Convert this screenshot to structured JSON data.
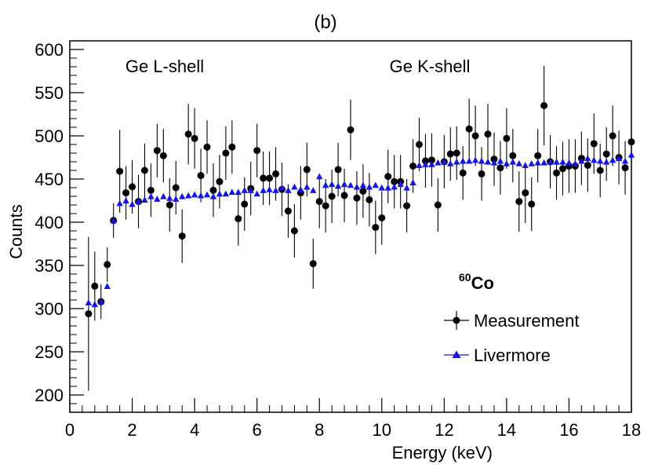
{
  "chart_data": {
    "type": "scatter",
    "panel_label": "(b)",
    "title": "",
    "xlabel": "Energy (keV)",
    "ylabel": "Counts",
    "xlim": [
      0,
      18
    ],
    "ylim": [
      180,
      610
    ],
    "x_ticks": [
      0,
      2,
      4,
      6,
      8,
      10,
      12,
      14,
      16,
      18
    ],
    "x_tick_labels": [
      "0",
      "2",
      "4",
      "6",
      "8",
      "10",
      "12",
      "14",
      "16",
      "18"
    ],
    "y_ticks": [
      200,
      250,
      300,
      350,
      400,
      450,
      500,
      550,
      600
    ],
    "y_tick_labels": [
      "200",
      "250",
      "300",
      "350",
      "400",
      "450",
      "500",
      "550",
      "600"
    ],
    "grid": false,
    "annotations": [
      {
        "text": "Ge L-shell",
        "x": 3.0,
        "y": 592
      },
      {
        "text": "Ge K-shell",
        "x": 11.6,
        "y": 592
      }
    ],
    "legend": {
      "title_superscript": "60",
      "title": "Co",
      "placement": "right",
      "entries": [
        "Measurement",
        "Livermore"
      ]
    },
    "series": [
      {
        "name": "Measurement",
        "marker": "circle",
        "color": "#000000",
        "x": [
          0.6,
          0.8,
          1.0,
          1.2,
          1.4,
          1.6,
          1.8,
          2.0,
          2.2,
          2.4,
          2.6,
          2.8,
          3.0,
          3.2,
          3.4,
          3.6,
          3.8,
          4.0,
          4.2,
          4.4,
          4.6,
          4.8,
          5.0,
          5.2,
          5.4,
          5.6,
          5.8,
          6.0,
          6.2,
          6.4,
          6.6,
          6.8,
          7.0,
          7.2,
          7.4,
          7.6,
          7.8,
          8.0,
          8.2,
          8.4,
          8.6,
          8.8,
          9.0,
          9.2,
          9.4,
          9.6,
          9.8,
          10.0,
          10.2,
          10.4,
          10.6,
          10.8,
          11.0,
          11.2,
          11.4,
          11.6,
          11.8,
          12.0,
          12.2,
          12.4,
          12.6,
          12.8,
          13.0,
          13.2,
          13.4,
          13.6,
          13.8,
          14.0,
          14.2,
          14.4,
          14.6,
          14.8,
          15.0,
          15.2,
          15.4,
          15.6,
          15.8,
          16.0,
          16.2,
          16.4,
          16.6,
          16.8,
          17.0,
          17.2,
          17.4,
          17.6,
          17.8,
          18.0
        ],
        "y": [
          294,
          326,
          308,
          351,
          402,
          459,
          434,
          441,
          424,
          460,
          437,
          483,
          477,
          420,
          440,
          384,
          502,
          497,
          454,
          487,
          437,
          447,
          480,
          487,
          404,
          421,
          439,
          483,
          451,
          451,
          456,
          438,
          413,
          390,
          434,
          461,
          352,
          424,
          419,
          430,
          461,
          431,
          507,
          428,
          436,
          426,
          394,
          405,
          453,
          447,
          447,
          419,
          465,
          490,
          471,
          472,
          420,
          470,
          479,
          480,
          457,
          508,
          500,
          456,
          502,
          473,
          463,
          497,
          477,
          424,
          434,
          421,
          477,
          535,
          470,
          457,
          462,
          465,
          465,
          474,
          466,
          491,
          460,
          479,
          500,
          475,
          463,
          493
        ],
        "yerr": [
          89,
          40,
          20,
          20,
          20,
          48,
          31,
          31,
          31,
          31,
          31,
          31,
          31,
          31,
          31,
          31,
          35,
          35,
          31,
          31,
          31,
          31,
          31,
          31,
          31,
          31,
          31,
          31,
          31,
          31,
          31,
          31,
          31,
          31,
          31,
          31,
          29,
          31,
          31,
          31,
          31,
          31,
          35,
          31,
          31,
          31,
          31,
          31,
          31,
          31,
          31,
          31,
          31,
          31,
          31,
          31,
          31,
          31,
          31,
          31,
          31,
          35,
          35,
          31,
          35,
          31,
          31,
          35,
          31,
          35,
          35,
          31,
          31,
          46,
          31,
          31,
          31,
          31,
          31,
          31,
          31,
          35,
          31,
          31,
          35,
          31,
          31,
          31
        ]
      },
      {
        "name": "Livermore",
        "marker": "triangle",
        "color": "#1414e6",
        "x": [
          0.6,
          0.8,
          1.0,
          1.2,
          1.4,
          1.6,
          1.8,
          2.0,
          2.2,
          2.4,
          2.6,
          2.8,
          3.0,
          3.2,
          3.4,
          3.6,
          3.8,
          4.0,
          4.2,
          4.4,
          4.6,
          4.8,
          5.0,
          5.2,
          5.4,
          5.6,
          5.8,
          6.0,
          6.2,
          6.4,
          6.6,
          6.8,
          7.0,
          7.2,
          7.4,
          7.6,
          7.8,
          8.0,
          8.2,
          8.4,
          8.6,
          8.8,
          9.0,
          9.2,
          9.4,
          9.6,
          9.8,
          10.0,
          10.2,
          10.4,
          10.6,
          10.8,
          11.0,
          11.2,
          11.4,
          11.6,
          11.8,
          12.0,
          12.2,
          12.4,
          12.6,
          12.8,
          13.0,
          13.2,
          13.4,
          13.6,
          13.8,
          14.0,
          14.2,
          14.4,
          14.6,
          14.8,
          15.0,
          15.2,
          15.4,
          15.6,
          15.8,
          16.0,
          16.2,
          16.4,
          16.6,
          16.8,
          17.0,
          17.2,
          17.4,
          17.6,
          17.8,
          18.0
        ],
        "y": [
          307,
          305,
          308,
          326,
          402,
          422,
          425,
          421,
          424,
          426,
          430,
          427,
          430,
          428,
          427,
          430,
          431,
          432,
          431,
          432,
          430,
          433,
          433,
          435,
          435,
          437,
          437,
          433,
          437,
          438,
          437,
          440,
          437,
          441,
          438,
          441,
          437,
          453,
          443,
          444,
          442,
          444,
          443,
          441,
          443,
          441,
          443,
          440,
          440,
          441,
          444,
          440,
          446,
          466,
          467,
          467,
          469,
          470,
          468,
          470,
          471,
          471,
          472,
          471,
          470,
          469,
          471,
          468,
          470,
          468,
          466,
          468,
          469,
          469,
          470,
          470,
          470,
          469,
          468,
          471,
          474,
          472,
          471,
          470,
          472,
          474,
          471,
          478
        ]
      }
    ]
  }
}
